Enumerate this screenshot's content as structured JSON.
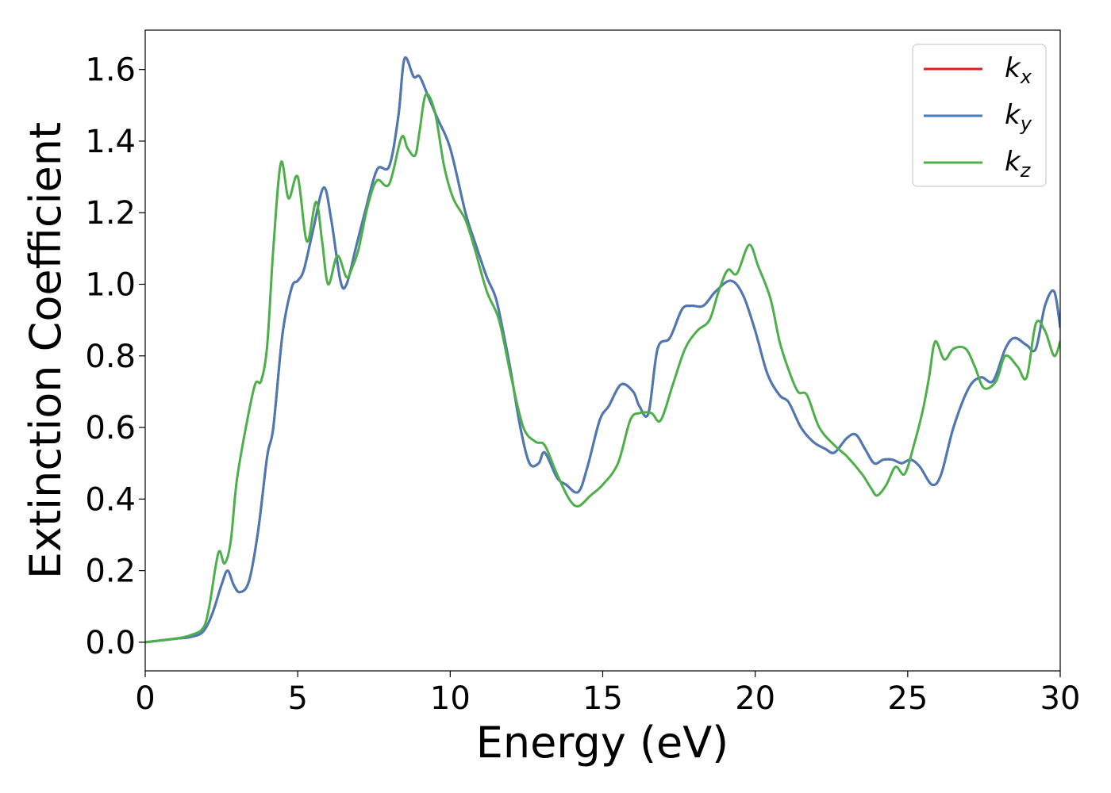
{
  "chart_data": {
    "type": "line",
    "xlabel": "Energy (eV)",
    "ylabel": "Extinction Coefficient",
    "xlim": [
      0,
      30
    ],
    "ylim": [
      -0.08,
      1.71
    ],
    "xticks": [
      0,
      5,
      10,
      15,
      20,
      25,
      30
    ],
    "yticks": [
      "0.0",
      "0.2",
      "0.4",
      "0.6",
      "0.8",
      "1.0",
      "1.2",
      "1.4",
      "1.6"
    ],
    "grid": false,
    "legend_position": "top-right",
    "series": [
      {
        "name": "k_x",
        "legend_base": "k",
        "legend_sub": "x",
        "color": "#e41a1c",
        "x": [
          0,
          0.5,
          1.0,
          1.5,
          1.9,
          2.2,
          2.5,
          2.7,
          2.9,
          3.1,
          3.4,
          3.7,
          4.0,
          4.2,
          4.5,
          4.8,
          5.0,
          5.2,
          5.5,
          5.85,
          6.1,
          6.4,
          6.6,
          6.9,
          7.2,
          7.6,
          8.0,
          8.3,
          8.5,
          8.8,
          9.0,
          9.3,
          9.6,
          10.0,
          10.5,
          10.8,
          11.2,
          11.5,
          11.8,
          12.0,
          12.3,
          12.6,
          12.9,
          13.1,
          13.5,
          13.8,
          14.2,
          14.5,
          14.9,
          15.2,
          15.6,
          16.0,
          16.2,
          16.5,
          16.8,
          17.2,
          17.6,
          17.9,
          18.3,
          18.7,
          19.2,
          19.6,
          20.0,
          20.4,
          20.8,
          21.1,
          21.5,
          21.9,
          22.3,
          22.6,
          23.0,
          23.3,
          23.6,
          23.9,
          24.2,
          24.5,
          24.8,
          25.1,
          25.4,
          25.8,
          26.1,
          26.5,
          27.0,
          27.4,
          27.8,
          28.2,
          28.5,
          28.9,
          29.2,
          29.5,
          29.8,
          30.0
        ],
        "y": [
          0.0,
          0.005,
          0.01,
          0.015,
          0.03,
          0.08,
          0.16,
          0.2,
          0.16,
          0.14,
          0.17,
          0.31,
          0.52,
          0.6,
          0.86,
          0.99,
          1.01,
          1.04,
          1.15,
          1.27,
          1.18,
          1.01,
          1.0,
          1.1,
          1.2,
          1.32,
          1.33,
          1.47,
          1.63,
          1.58,
          1.58,
          1.52,
          1.46,
          1.38,
          1.2,
          1.12,
          1.02,
          0.96,
          0.84,
          0.75,
          0.6,
          0.5,
          0.5,
          0.53,
          0.46,
          0.44,
          0.42,
          0.49,
          0.62,
          0.66,
          0.72,
          0.7,
          0.66,
          0.64,
          0.82,
          0.85,
          0.93,
          0.94,
          0.94,
          0.98,
          1.01,
          0.97,
          0.87,
          0.75,
          0.69,
          0.67,
          0.6,
          0.56,
          0.54,
          0.53,
          0.57,
          0.58,
          0.54,
          0.5,
          0.51,
          0.51,
          0.5,
          0.51,
          0.49,
          0.44,
          0.47,
          0.6,
          0.71,
          0.74,
          0.73,
          0.82,
          0.85,
          0.83,
          0.82,
          0.94,
          0.98,
          0.88
        ]
      },
      {
        "name": "k_y",
        "legend_base": "k",
        "legend_sub": "y",
        "color": "#4a7ab5",
        "x": [
          0,
          0.5,
          1.0,
          1.5,
          1.9,
          2.2,
          2.5,
          2.7,
          2.9,
          3.1,
          3.4,
          3.7,
          4.0,
          4.2,
          4.5,
          4.8,
          5.0,
          5.2,
          5.5,
          5.85,
          6.1,
          6.4,
          6.6,
          6.9,
          7.2,
          7.6,
          8.0,
          8.3,
          8.5,
          8.8,
          9.0,
          9.3,
          9.6,
          10.0,
          10.5,
          10.8,
          11.2,
          11.5,
          11.8,
          12.0,
          12.3,
          12.6,
          12.9,
          13.1,
          13.5,
          13.8,
          14.2,
          14.5,
          14.9,
          15.2,
          15.6,
          16.0,
          16.2,
          16.5,
          16.8,
          17.2,
          17.6,
          17.9,
          18.3,
          18.7,
          19.2,
          19.6,
          20.0,
          20.4,
          20.8,
          21.1,
          21.5,
          21.9,
          22.3,
          22.6,
          23.0,
          23.3,
          23.6,
          23.9,
          24.2,
          24.5,
          24.8,
          25.1,
          25.4,
          25.8,
          26.1,
          26.5,
          27.0,
          27.4,
          27.8,
          28.2,
          28.5,
          28.9,
          29.2,
          29.5,
          29.8,
          30.0
        ],
        "y": [
          0.0,
          0.005,
          0.01,
          0.015,
          0.03,
          0.08,
          0.16,
          0.2,
          0.16,
          0.14,
          0.17,
          0.31,
          0.52,
          0.6,
          0.86,
          0.99,
          1.01,
          1.04,
          1.15,
          1.27,
          1.18,
          1.01,
          1.0,
          1.1,
          1.2,
          1.32,
          1.33,
          1.47,
          1.63,
          1.58,
          1.58,
          1.52,
          1.46,
          1.38,
          1.2,
          1.12,
          1.02,
          0.96,
          0.84,
          0.75,
          0.6,
          0.5,
          0.5,
          0.53,
          0.46,
          0.44,
          0.42,
          0.49,
          0.62,
          0.66,
          0.72,
          0.7,
          0.66,
          0.64,
          0.82,
          0.85,
          0.93,
          0.94,
          0.94,
          0.98,
          1.01,
          0.97,
          0.87,
          0.75,
          0.69,
          0.67,
          0.6,
          0.56,
          0.54,
          0.53,
          0.57,
          0.58,
          0.54,
          0.5,
          0.51,
          0.51,
          0.5,
          0.51,
          0.49,
          0.44,
          0.47,
          0.6,
          0.71,
          0.74,
          0.73,
          0.82,
          0.85,
          0.83,
          0.82,
          0.94,
          0.98,
          0.88
        ]
      },
      {
        "name": "k_z",
        "legend_base": "k",
        "legend_sub": "z",
        "color": "#4daf4a",
        "x": [
          0,
          0.5,
          1.0,
          1.5,
          1.9,
          2.1,
          2.4,
          2.6,
          2.8,
          3.0,
          3.3,
          3.6,
          3.8,
          4.0,
          4.2,
          4.45,
          4.7,
          5.0,
          5.3,
          5.6,
          5.8,
          6.0,
          6.3,
          6.6,
          6.8,
          7.0,
          7.3,
          7.6,
          8.0,
          8.4,
          8.6,
          8.85,
          9.0,
          9.2,
          9.5,
          9.8,
          10.1,
          10.5,
          10.8,
          11.2,
          11.6,
          12.0,
          12.4,
          12.8,
          13.1,
          13.5,
          13.9,
          14.2,
          14.6,
          15.0,
          15.5,
          15.9,
          16.2,
          16.6,
          16.9,
          17.3,
          17.7,
          18.1,
          18.5,
          18.8,
          19.1,
          19.4,
          19.8,
          20.1,
          20.5,
          20.8,
          21.1,
          21.4,
          21.7,
          22.1,
          22.6,
          23.0,
          23.5,
          23.8,
          24.0,
          24.3,
          24.6,
          24.9,
          25.2,
          25.5,
          25.7,
          25.9,
          26.2,
          26.5,
          26.9,
          27.2,
          27.5,
          27.9,
          28.2,
          28.6,
          28.9,
          29.2,
          29.5,
          29.8,
          30.0
        ],
        "y": [
          0.0,
          0.005,
          0.01,
          0.02,
          0.04,
          0.1,
          0.25,
          0.22,
          0.28,
          0.45,
          0.6,
          0.72,
          0.73,
          0.83,
          1.1,
          1.34,
          1.24,
          1.3,
          1.12,
          1.23,
          1.12,
          1.0,
          1.08,
          1.02,
          1.05,
          1.1,
          1.22,
          1.29,
          1.28,
          1.41,
          1.38,
          1.36,
          1.43,
          1.53,
          1.48,
          1.33,
          1.24,
          1.18,
          1.1,
          0.98,
          0.9,
          0.74,
          0.6,
          0.56,
          0.55,
          0.47,
          0.4,
          0.38,
          0.41,
          0.44,
          0.5,
          0.62,
          0.64,
          0.64,
          0.62,
          0.72,
          0.82,
          0.87,
          0.9,
          0.98,
          1.04,
          1.03,
          1.11,
          1.05,
          0.96,
          0.84,
          0.76,
          0.7,
          0.69,
          0.6,
          0.55,
          0.52,
          0.47,
          0.43,
          0.41,
          0.44,
          0.49,
          0.47,
          0.55,
          0.65,
          0.74,
          0.84,
          0.79,
          0.82,
          0.82,
          0.77,
          0.71,
          0.73,
          0.8,
          0.77,
          0.74,
          0.89,
          0.87,
          0.8,
          0.84
        ]
      }
    ]
  }
}
